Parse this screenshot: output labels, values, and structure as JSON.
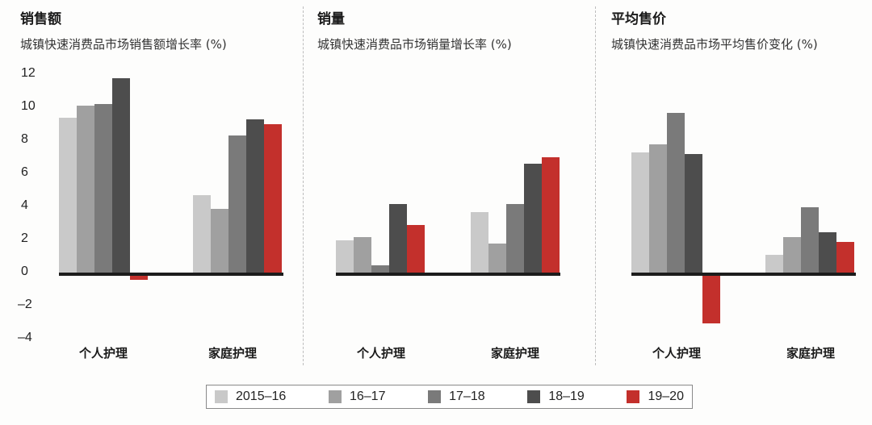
{
  "colors": {
    "2015-16": "#c9c9c9",
    "16-17": "#a0a0a0",
    "17-18": "#7a7a7a",
    "18-19": "#4d4d4d",
    "19-20": "#c3302c",
    "baseline": "#1c1c1c"
  },
  "panels": [
    {
      "title": "销售额",
      "subtitle": "城镇快速消费品市场销售额增长率 (%)"
    },
    {
      "title": "销量",
      "subtitle": "城镇快速消费品市场销量增长率 (%)"
    },
    {
      "title": "平均售价",
      "subtitle": "城镇快速消费品市场平均售价变化 (%)"
    }
  ],
  "y_ticks": [
    "12",
    "10",
    "8",
    "6",
    "4",
    "2",
    "0",
    "–2",
    "–4"
  ],
  "categories": [
    "个人护理",
    "家庭护理"
  ],
  "legend": [
    {
      "label": "2015–16",
      "key": "2015-16"
    },
    {
      "label": "16–17",
      "key": "16-17"
    },
    {
      "label": "17–18",
      "key": "17-18"
    },
    {
      "label": "18–19",
      "key": "18-19"
    },
    {
      "label": "19–20",
      "key": "19-20"
    }
  ],
  "chart_data": [
    {
      "type": "bar",
      "title": "销售额",
      "subtitle": "城镇快速消费品市场销售额增长率 (%)",
      "categories": [
        "个人护理",
        "家庭护理"
      ],
      "series": [
        {
          "name": "2015–16",
          "values": [
            9.4,
            4.7
          ]
        },
        {
          "name": "16–17",
          "values": [
            10.1,
            3.9
          ]
        },
        {
          "name": "17–18",
          "values": [
            10.2,
            8.3
          ]
        },
        {
          "name": "18–19",
          "values": [
            11.8,
            9.3
          ]
        },
        {
          "name": "19–20",
          "values": [
            -0.3,
            9.0
          ]
        }
      ],
      "ylim": [
        -4,
        12
      ],
      "yticks": [
        12,
        10,
        8,
        6,
        4,
        2,
        0,
        -2,
        -4
      ],
      "xlabel": "",
      "ylabel": "%",
      "grid": false,
      "legend_position": "bottom"
    },
    {
      "type": "bar",
      "title": "销量",
      "subtitle": "城镇快速消费品市场销量增长率 (%)",
      "categories": [
        "个人护理",
        "家庭护理"
      ],
      "series": [
        {
          "name": "2015–16",
          "values": [
            2.0,
            3.7
          ]
        },
        {
          "name": "16–17",
          "values": [
            2.2,
            1.8
          ]
        },
        {
          "name": "17–18",
          "values": [
            0.5,
            4.2
          ]
        },
        {
          "name": "18–19",
          "values": [
            4.2,
            6.6
          ]
        },
        {
          "name": "19–20",
          "values": [
            2.9,
            7.0
          ]
        }
      ],
      "ylim": [
        -4,
        12
      ],
      "xlabel": "",
      "ylabel": "%",
      "grid": false,
      "legend_position": "bottom"
    },
    {
      "type": "bar",
      "title": "平均售价",
      "subtitle": "城镇快速消费品市场平均售价变化 (%)",
      "categories": [
        "个人护理",
        "家庭护理"
      ],
      "series": [
        {
          "name": "2015–16",
          "values": [
            7.3,
            1.1
          ]
        },
        {
          "name": "16–17",
          "values": [
            7.8,
            2.2
          ]
        },
        {
          "name": "17–18",
          "values": [
            9.7,
            4.0
          ]
        },
        {
          "name": "18–19",
          "values": [
            7.2,
            2.5
          ]
        },
        {
          "name": "19–20",
          "values": [
            -2.9,
            1.9
          ]
        }
      ],
      "ylim": [
        -4,
        12
      ],
      "xlabel": "",
      "ylabel": "%",
      "grid": false,
      "legend_position": "bottom"
    }
  ]
}
